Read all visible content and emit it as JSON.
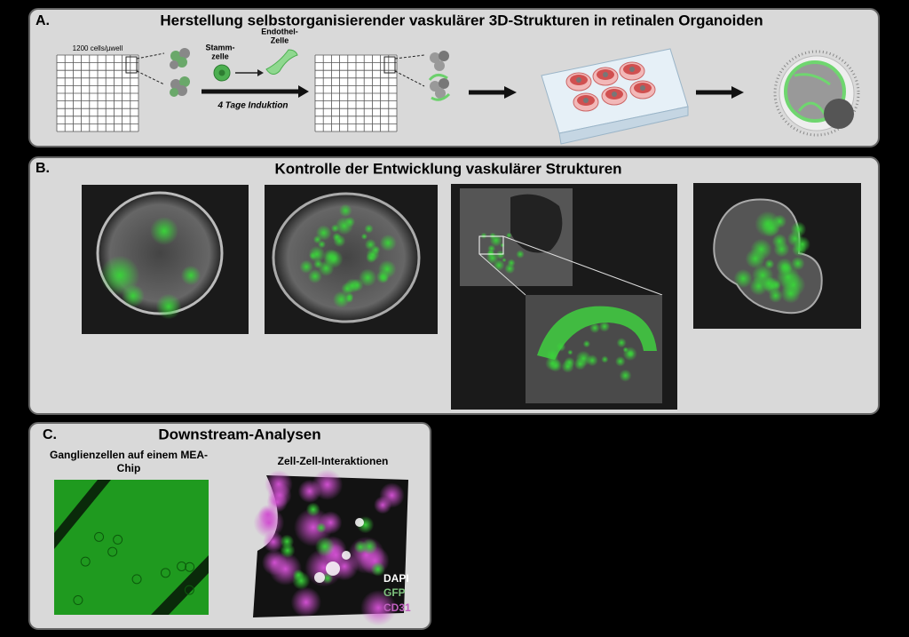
{
  "panel_a": {
    "letter": "A.",
    "title": "Herstellung selbstorganisierender vaskulärer 3D-Strukturen in retinalen Organoiden",
    "grid_label": "1200 cells/µwell",
    "stem_cell": [
      "Stamm-",
      "zelle"
    ],
    "endothelial_cell": [
      "Endothel-",
      "Zelle"
    ],
    "arrow_label": "4 Tage Induktion"
  },
  "panel_b": {
    "letter": "B.",
    "title": "Kontrolle der Entwicklung vaskulärer Strukturen"
  },
  "panel_c": {
    "letter": "C.",
    "title": "Downstream-Analysen",
    "left_caption": [
      "Ganglienzellen auf einem MEA-",
      "Chip"
    ],
    "right_caption": "Zell-Zell-Interaktionen",
    "legend": [
      "DAPI",
      "GFP",
      "CD31"
    ]
  }
}
